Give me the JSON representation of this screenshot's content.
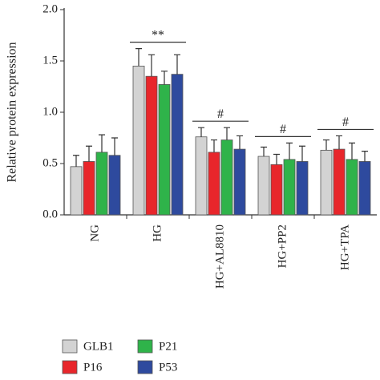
{
  "chart_data": {
    "type": "bar",
    "y_label": "Relative protein expression",
    "categories": [
      "NG",
      "HG",
      "HG+AL8810",
      "HG+PP2",
      "HG+TPA"
    ],
    "series": [
      {
        "name": "GLB1",
        "color": "#d3d3d3",
        "values": [
          0.47,
          1.45,
          0.76,
          0.57,
          0.63
        ],
        "errors": [
          0.11,
          0.17,
          0.09,
          0.09,
          0.1
        ]
      },
      {
        "name": "P16",
        "color": "#e8262b",
        "values": [
          0.52,
          1.35,
          0.61,
          0.49,
          0.64
        ],
        "errors": [
          0.15,
          0.21,
          0.12,
          0.1,
          0.13
        ]
      },
      {
        "name": "P21",
        "color": "#2fb34a",
        "values": [
          0.61,
          1.27,
          0.73,
          0.54,
          0.54
        ],
        "errors": [
          0.17,
          0.13,
          0.12,
          0.16,
          0.16
        ]
      },
      {
        "name": "P53",
        "color": "#2e4a9e",
        "values": [
          0.58,
          1.37,
          0.64,
          0.52,
          0.52
        ],
        "errors": [
          0.17,
          0.19,
          0.13,
          0.15,
          0.1
        ]
      }
    ],
    "annotations": [
      null,
      "**",
      "#",
      "#",
      "#"
    ],
    "ylim": [
      0,
      2
    ],
    "yticks": [
      {
        "value": 0,
        "label": "0.0"
      },
      {
        "value": 0.5,
        "label": "0.5"
      },
      {
        "value": 1,
        "label": "1.0"
      },
      {
        "value": 1.5,
        "label": "1.5"
      },
      {
        "value": 2,
        "label": "2.0"
      }
    ],
    "grid": false
  }
}
